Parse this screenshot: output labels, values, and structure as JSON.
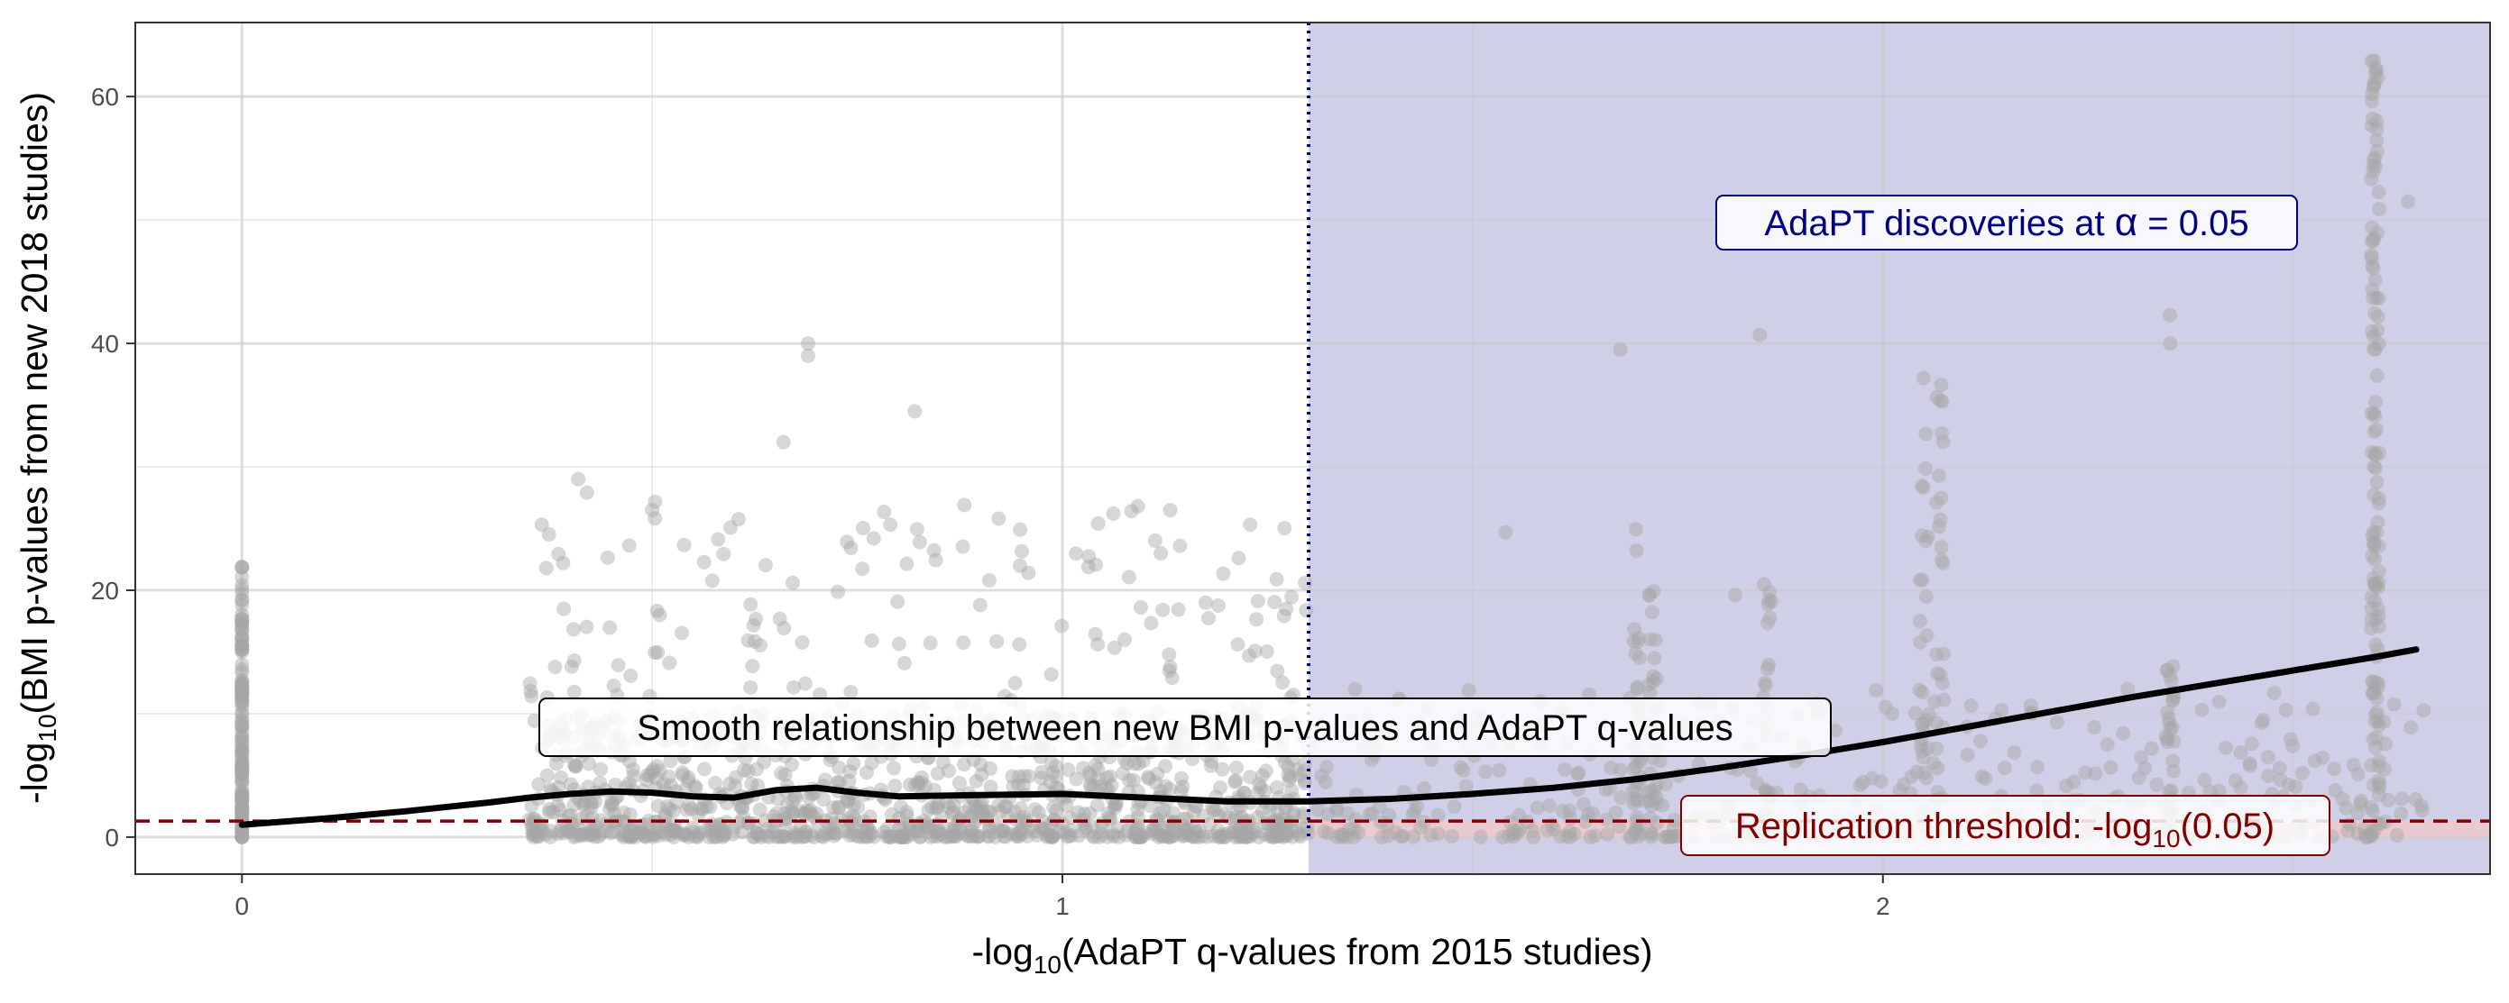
{
  "chart_data": {
    "type": "scatter",
    "xlabel": {
      "prefix": "-log",
      "sub": "10",
      "suffix": "(AdaPT q-values from 2015 studies)"
    },
    "ylabel": {
      "prefix": "-log",
      "sub": "10",
      "suffix": "(BMI p-values from new 2018 studies)"
    },
    "xlim": [
      -0.13,
      2.74
    ],
    "ylim": [
      -3,
      66
    ],
    "x_ticks": [
      0,
      1,
      2
    ],
    "x_tick_labels": [
      "0",
      "1",
      "2"
    ],
    "y_ticks": [
      0,
      20,
      40,
      60
    ],
    "y_tick_labels": [
      "0",
      "20",
      "40",
      "60"
    ],
    "grid": true,
    "colors": {
      "points": "#a6a6a6",
      "smooth": "#000000",
      "discovery_region": "#d0cfe8",
      "discovery_line": "#000080",
      "threshold_line": "#800000",
      "threshold_band": "#f0c8cc"
    },
    "discovery_cutoff_x": 1.3,
    "replication_threshold_y": 1.3,
    "smooth_curve": {
      "x": [
        0,
        0.1,
        0.2,
        0.3,
        0.35,
        0.4,
        0.45,
        0.5,
        0.55,
        0.6,
        0.65,
        0.7,
        0.75,
        0.8,
        0.9,
        1.0,
        1.1,
        1.2,
        1.3,
        1.4,
        1.5,
        1.6,
        1.7,
        1.8,
        1.9,
        2.0,
        2.1,
        2.2,
        2.3,
        2.4,
        2.5,
        2.6,
        2.65
      ],
      "y": [
        1.0,
        1.5,
        2.1,
        2.8,
        3.2,
        3.5,
        3.7,
        3.6,
        3.3,
        3.2,
        3.8,
        4.0,
        3.6,
        3.3,
        3.4,
        3.5,
        3.2,
        2.9,
        2.9,
        3.1,
        3.5,
        4.0,
        4.7,
        5.6,
        6.6,
        7.7,
        8.9,
        10.1,
        11.3,
        12.4,
        13.5,
        14.6,
        15.2
      ]
    },
    "annotations": {
      "smooth_label": "Smooth relationship between new BMI p-values and AdaPT q-values",
      "discovery_label_prefix": "AdaPT discoveries at ",
      "discovery_label_alpha": "α",
      "discovery_label_suffix": " = 0.05",
      "threshold_label_prefix": "Replication threshold: -log",
      "threshold_label_sub": "10",
      "threshold_label_suffix": "(0.05)"
    }
  }
}
